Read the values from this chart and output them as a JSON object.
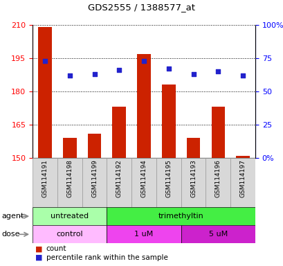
{
  "title": "GDS2555 / 1388577_at",
  "samples": [
    "GSM114191",
    "GSM114198",
    "GSM114199",
    "GSM114192",
    "GSM114194",
    "GSM114195",
    "GSM114193",
    "GSM114196",
    "GSM114197"
  ],
  "count_values": [
    209,
    159,
    161,
    173,
    197,
    183,
    159,
    173,
    151
  ],
  "percentile_values": [
    73,
    62,
    63,
    66,
    73,
    67,
    63,
    65,
    62
  ],
  "ylim_left": [
    150,
    210
  ],
  "ylim_right": [
    0,
    100
  ],
  "yticks_left": [
    150,
    165,
    180,
    195,
    210
  ],
  "yticks_right": [
    0,
    25,
    50,
    75,
    100
  ],
  "bar_color": "#cc2200",
  "dot_color": "#2222cc",
  "agent_untreated_color": "#aaffaa",
  "agent_trimethyltin_color": "#44ee44",
  "dose_control_color": "#ffbbff",
  "dose_1um_color": "#ee44ee",
  "dose_5um_color": "#cc22cc",
  "legend_count_label": "count",
  "legend_pct_label": "percentile rank within the sample",
  "bar_width": 0.55,
  "dot_size": 22,
  "sample_label_fontsize": 6.5,
  "row_label_fontsize": 8,
  "legend_fontsize": 7.5
}
